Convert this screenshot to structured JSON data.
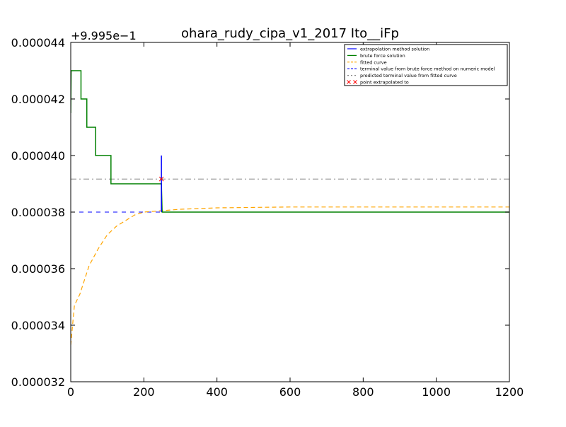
{
  "chart_data": {
    "type": "line",
    "title": "ohara_rudy_cipa_v1_2017 Ito__iFp",
    "offset_label": "+9.995e−1",
    "xlabel": "",
    "ylabel": "",
    "xlim": [
      0,
      1200
    ],
    "ylim": [
      3.2e-05,
      4.4e-05
    ],
    "x_ticks": [
      0,
      200,
      400,
      600,
      800,
      1000,
      1200
    ],
    "x_tick_labels": [
      "0",
      "200",
      "400",
      "600",
      "800",
      "1000",
      "1200"
    ],
    "y_ticks": [
      3.2e-05,
      3.4e-05,
      3.6e-05,
      3.8e-05,
      4e-05,
      4.2e-05,
      4.4e-05
    ],
    "y_tick_labels": [
      "0.000032",
      "0.000034",
      "0.000036",
      "0.000038",
      "0.000040",
      "0.000042",
      "0.000044"
    ],
    "grid": false,
    "legend_position": "top-right",
    "series": [
      {
        "name": "extrapolation method solution",
        "color": "#0000ff",
        "style": "solid",
        "points": [
          [
            248,
            3.8e-05
          ],
          [
            248,
            4e-05
          ],
          [
            248,
            3.8e-05
          ]
        ]
      },
      {
        "name": "brute force solution",
        "color": "#008000",
        "style": "solid",
        "points": [
          [
            0,
            4.15e-05
          ],
          [
            1,
            4.3e-05
          ],
          [
            28,
            4.3e-05
          ],
          [
            28,
            4.2e-05
          ],
          [
            44,
            4.2e-05
          ],
          [
            44,
            4.1e-05
          ],
          [
            68,
            4.1e-05
          ],
          [
            68,
            4e-05
          ],
          [
            110,
            4e-05
          ],
          [
            110,
            3.9e-05
          ],
          [
            248,
            3.9e-05
          ],
          [
            250,
            3.8e-05
          ],
          [
            1200,
            3.8e-05
          ]
        ]
      },
      {
        "name": "fitted curve",
        "color": "#ffa500",
        "style": "dashed",
        "points": [
          [
            0,
            3.33e-05
          ],
          [
            10,
            3.47e-05
          ],
          [
            25,
            3.51e-05
          ],
          [
            50,
            3.61e-05
          ],
          [
            75,
            3.67e-05
          ],
          [
            100,
            3.72e-05
          ],
          [
            125,
            3.75e-05
          ],
          [
            150,
            3.77e-05
          ],
          [
            175,
            3.79e-05
          ],
          [
            200,
            3.8e-05
          ],
          [
            250,
            3.805e-05
          ],
          [
            300,
            3.81e-05
          ],
          [
            400,
            3.815e-05
          ],
          [
            600,
            3.818e-05
          ],
          [
            800,
            3.818e-05
          ],
          [
            1000,
            3.818e-05
          ],
          [
            1200,
            3.818e-05
          ]
        ]
      },
      {
        "name": "terminal value from brute force method on numeric model",
        "color": "#0000ff",
        "style": "dashed-h",
        "y": 3.8e-05
      },
      {
        "name": "predicted terminal value from fitted curve",
        "color": "#808080",
        "style": "dashdot-h",
        "y": 3.917e-05
      },
      {
        "name": "point extrapolated to",
        "color": "#ff0000",
        "style": "marker-x",
        "points": [
          [
            248,
            3.917e-05
          ]
        ]
      }
    ]
  }
}
